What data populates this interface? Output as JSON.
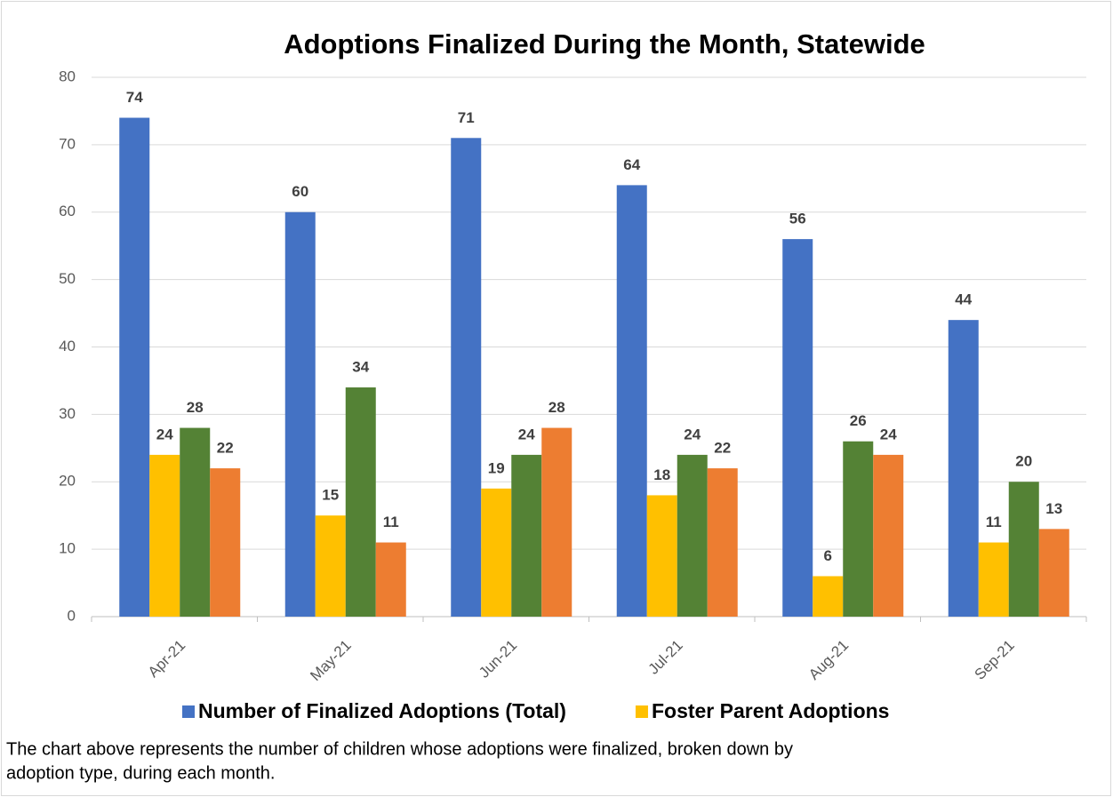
{
  "chart_data": {
    "type": "bar",
    "title": "Adoptions Finalized During the Month, Statewide",
    "categories": [
      "Apr-21",
      "May-21",
      "Jun-21",
      "Jul-21",
      "Aug-21",
      "Sep-21"
    ],
    "series": [
      {
        "name": "Number of Finalized Adoptions (Total)",
        "color": "#4472c4",
        "values": [
          74,
          60,
          71,
          64,
          56,
          44
        ]
      },
      {
        "name": "Foster Parent Adoptions",
        "color": "#ffc000",
        "values": [
          24,
          15,
          19,
          18,
          6,
          11
        ]
      },
      {
        "color": "#548235",
        "values": [
          28,
          34,
          24,
          24,
          26,
          20
        ]
      },
      {
        "color": "#ed7d31",
        "values": [
          22,
          11,
          28,
          22,
          24,
          13
        ]
      }
    ],
    "ylim": [
      0,
      80
    ],
    "yticks": [
      0,
      10,
      20,
      30,
      40,
      50,
      60,
      70,
      80
    ],
    "grid": true,
    "legend": "bottom",
    "caption": [
      "The chart above represents the number of children whose adoptions were finalized, broken down by",
      "adoption type, during each month."
    ]
  }
}
